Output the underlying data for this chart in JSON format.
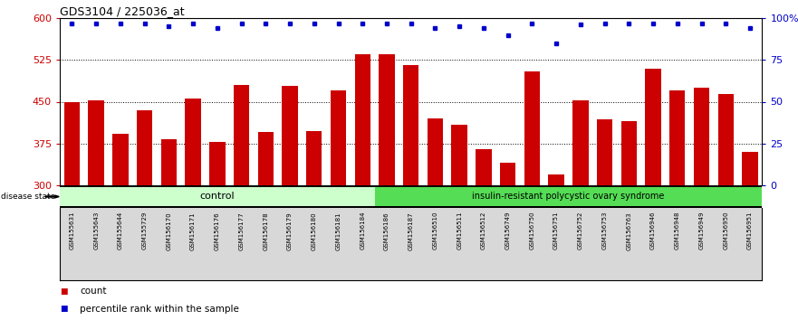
{
  "title": "GDS3104 / 225036_at",
  "samples": [
    "GSM155631",
    "GSM155643",
    "GSM155644",
    "GSM155729",
    "GSM156170",
    "GSM156171",
    "GSM156176",
    "GSM156177",
    "GSM156178",
    "GSM156179",
    "GSM156180",
    "GSM156181",
    "GSM156184",
    "GSM156186",
    "GSM156187",
    "GSM156510",
    "GSM156511",
    "GSM156512",
    "GSM156749",
    "GSM156750",
    "GSM156751",
    "GSM156752",
    "GSM156753",
    "GSM156763",
    "GSM156946",
    "GSM156948",
    "GSM156949",
    "GSM156950",
    "GSM156951"
  ],
  "counts": [
    450,
    453,
    393,
    435,
    383,
    456,
    378,
    480,
    395,
    478,
    397,
    470,
    535,
    535,
    515,
    420,
    408,
    365,
    340,
    505,
    320,
    453,
    418,
    415,
    510,
    470,
    475,
    463,
    360
  ],
  "percentile_ranks": [
    97,
    97,
    97,
    97,
    95,
    97,
    94,
    97,
    97,
    97,
    97,
    97,
    97,
    97,
    97,
    94,
    95,
    94,
    90,
    97,
    85,
    96,
    97,
    97,
    97,
    97,
    97,
    97,
    94
  ],
  "n_control": 13,
  "n_disease": 16,
  "control_label": "control",
  "disease_label": "insulin-resistant polycystic ovary syndrome",
  "disease_state_label": "disease state",
  "y_min": 300,
  "y_max": 600,
  "y_ticks_left": [
    300,
    375,
    450,
    525,
    600
  ],
  "y_ticks_right": [
    0,
    25,
    50,
    75,
    100
  ],
  "y_ticklabels_right": [
    "0",
    "25",
    "50",
    "75",
    "100%"
  ],
  "bar_color": "#cc0000",
  "dot_color": "#0000cc",
  "control_bg": "#ccffcc",
  "disease_bg": "#55dd55",
  "tick_label_bg": "#d8d8d8",
  "dotted_gridlines": [
    375,
    450,
    525
  ],
  "legend_items": [
    {
      "color": "#cc0000",
      "label": "count"
    },
    {
      "color": "#0000cc",
      "label": "percentile rank within the sample"
    }
  ]
}
